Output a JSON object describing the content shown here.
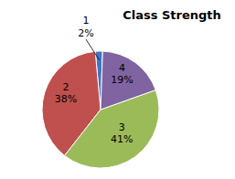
{
  "chart_data": {
    "type": "pie",
    "title": "Class Strength",
    "categories": [
      "1",
      "2",
      "3",
      "4"
    ],
    "values": [
      2,
      38,
      41,
      19
    ],
    "value_labels": [
      "2%",
      "38%",
      "41%",
      "19%"
    ],
    "colors": [
      "#4472C4",
      "#C0504D",
      "#9BBB59",
      "#8064A2"
    ],
    "data_labels": true
  }
}
